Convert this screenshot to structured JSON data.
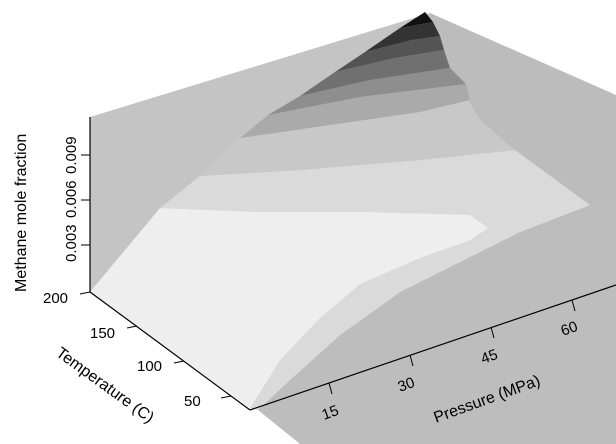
{
  "chart_data": {
    "type": "surface",
    "title": "",
    "xlabel": "Pressure (MPa)",
    "ylabel": "Temperature (C)",
    "zlabel": "Methane mole fraction",
    "x_ticks": [
      "15",
      "30",
      "45",
      "60"
    ],
    "y_ticks": [
      "50",
      "100",
      "150",
      "200"
    ],
    "z_ticks": [
      "0.003",
      "0.006",
      "0.009"
    ],
    "x_range": [
      5,
      70
    ],
    "y_range": [
      20,
      200
    ],
    "z_range": [
      0,
      0.012
    ],
    "grid": false,
    "legend": "none",
    "shading": "grayscale contour bands, lighter = lower mole fraction",
    "colors": {
      "band_1": "#eeeeee",
      "band_2": "#dcdcdc",
      "band_3": "#c8c8c8",
      "band_4": "#aaaaaa",
      "band_5": "#8e8e8e",
      "band_6": "#707070",
      "band_7": "#545454",
      "band_8": "#333333",
      "band_9": "#111111",
      "back_walls": "#c0c0c0"
    }
  }
}
